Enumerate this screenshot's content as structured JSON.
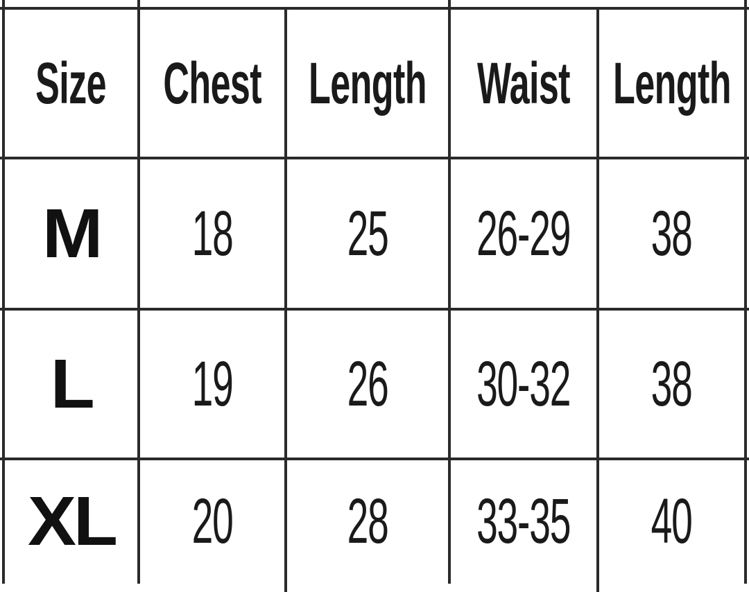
{
  "table": {
    "headers": [
      "Size",
      "Chest",
      "Length",
      "Waist",
      "Length"
    ],
    "rows": [
      [
        "M",
        "18",
        "25",
        "26-29",
        "38"
      ],
      [
        "L",
        "19",
        "26",
        "30-32",
        "38"
      ],
      [
        "XL",
        "20",
        "28",
        "33-35",
        "40"
      ]
    ]
  }
}
